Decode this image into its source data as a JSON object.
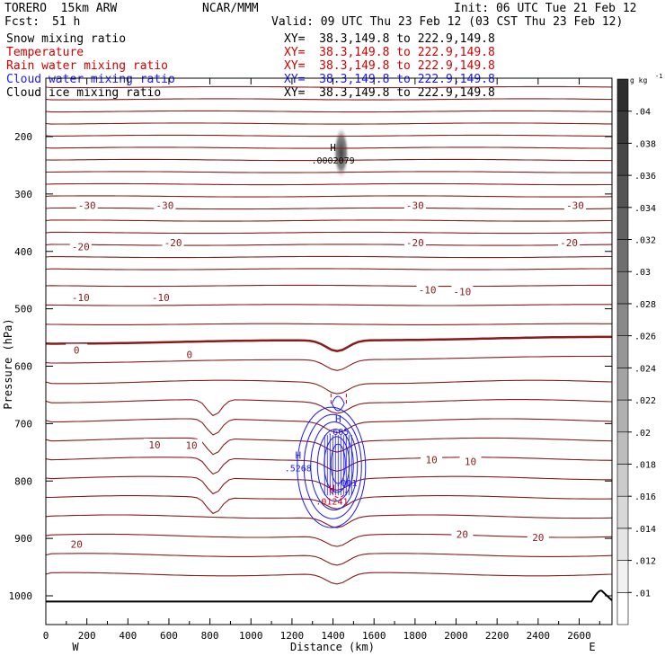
{
  "header": {
    "model": "TORERO  15km ARW",
    "org": "NCAR/MMM",
    "init": "Init: 06 UTC Tue 21 Feb 12",
    "fcst_label": "Fcst:",
    "fcst_value": "51 h",
    "valid": "Valid: 09 UTC Thu 23 Feb 12 (03 CST Thu 23 Feb 12)"
  },
  "fields": [
    {
      "name": "Snow mixing ratio",
      "xy": "XY=  38.3,149.8 to 222.9,149.8",
      "color": "#000000"
    },
    {
      "name": "Temperature",
      "xy": "XY=  38.3,149.8 to 222.9,149.8",
      "color": "#d40000"
    },
    {
      "name": "Rain water mixing ratio",
      "xy": "XY=  38.3,149.8 to 222.9,149.8",
      "color": "#d40000"
    },
    {
      "name": "Cloud water mixing ratio",
      "xy": "XY=  38.3,149.8 to 222.9,149.8",
      "color": "#1a1aff"
    },
    {
      "name": "Cloud ice mixing ratio",
      "xy": "XY=  38.3,149.8 to 222.9,149.8",
      "color": "#000000"
    }
  ],
  "chart_data": {
    "type": "contour-cross-section",
    "xlabel": "Distance (km)",
    "ylabel": "Pressure (hPa)",
    "xlim": [
      0,
      2760
    ],
    "ylim": [
      1050,
      100
    ],
    "x_ticks": [
      0,
      200,
      400,
      600,
      800,
      1000,
      1200,
      1400,
      1600,
      1800,
      2000,
      2200,
      2400,
      2600
    ],
    "y_ticks": [
      200,
      300,
      400,
      500,
      600,
      700,
      800,
      900,
      1000
    ],
    "x_end_labels": {
      "left": "W",
      "right": "E"
    },
    "colorbar": {
      "unit": "g kg",
      "unit_exp": "-1",
      "ticks": [
        ".01",
        ".012",
        ".014",
        ".016",
        ".018",
        ".02",
        ".022",
        ".024",
        ".026",
        ".028",
        ".03",
        ".032",
        ".034",
        ".036",
        ".038",
        ".04"
      ]
    },
    "temperature_isotherm_labels": [
      {
        "value": "-30",
        "x": 200,
        "p": 320
      },
      {
        "value": "-30",
        "x": 580,
        "p": 320
      },
      {
        "value": "-30",
        "x": 1800,
        "p": 320
      },
      {
        "value": "-30",
        "x": 2580,
        "p": 320
      },
      {
        "value": "-20",
        "x": 170,
        "p": 392
      },
      {
        "value": "-20",
        "x": 620,
        "p": 385
      },
      {
        "value": "-20",
        "x": 1800,
        "p": 385
      },
      {
        "value": "-20",
        "x": 2550,
        "p": 385
      },
      {
        "value": "-10",
        "x": 170,
        "p": 480
      },
      {
        "value": "-10",
        "x": 560,
        "p": 480
      },
      {
        "value": "-10",
        "x": 1860,
        "p": 467
      },
      {
        "value": "-10",
        "x": 2030,
        "p": 470
      },
      {
        "value": "0",
        "x": 150,
        "p": 572
      },
      {
        "value": "0",
        "x": 700,
        "p": 580
      },
      {
        "value": "10",
        "x": 530,
        "p": 737
      },
      {
        "value": "10",
        "x": 710,
        "p": 738
      },
      {
        "value": "10",
        "x": 1880,
        "p": 763
      },
      {
        "value": "10",
        "x": 2070,
        "p": 766
      },
      {
        "value": "20",
        "x": 150,
        "p": 910
      },
      {
        "value": "20",
        "x": 2030,
        "p": 893
      },
      {
        "value": "20",
        "x": 2400,
        "p": 898
      }
    ],
    "extrema_labels": [
      {
        "letter": "H",
        "value": ".0002079",
        "x": 1400,
        "p": 244,
        "color": "#000000"
      },
      {
        "letter": "H",
        "value": ".605",
        "x": 1425,
        "p": 717,
        "color": "#1a1aff"
      },
      {
        "letter": "H",
        "value": ".5268",
        "x": 1230,
        "p": 780,
        "color": "#1a1aff"
      },
      {
        "letter": "",
        "value": ".001",
        "x": 1465,
        "p": 806,
        "color": "#1a1aff"
      },
      {
        "letter": "H",
        "value": ".01241",
        "x": 1395,
        "p": 838,
        "color": "#d40000"
      }
    ]
  }
}
